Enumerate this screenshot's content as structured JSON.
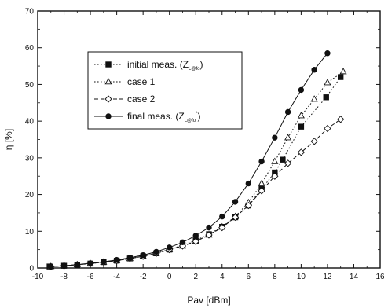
{
  "chart_data": {
    "type": "line",
    "xlabel": "Pav [dBm]",
    "ylabel": "η [%]",
    "xlim": [
      -10,
      16
    ],
    "ylim": [
      0,
      70
    ],
    "x_ticks": [
      "-10",
      "-8",
      "-6",
      "-4",
      "-2",
      "0",
      "2",
      "4",
      "6",
      "8",
      "10",
      "12",
      "14",
      "16"
    ],
    "y_ticks": [
      "0",
      "10",
      "20",
      "30",
      "40",
      "50",
      "60",
      "70"
    ],
    "legend_position": "upper-left",
    "grid": false,
    "series": [
      {
        "name": "initial meas. (Z",
        "subscript": "L@fo",
        "suffix": ")",
        "line": "dotted",
        "marker": "square-filled",
        "x": [
          -9.1,
          -8.0,
          -7.0,
          -6.0,
          -5.0,
          -4.0,
          -3.0,
          -2.0,
          -1.0,
          0.0,
          1.0,
          2.0,
          3.0,
          4.0,
          5.0,
          6.0,
          7.0,
          8.0,
          8.6,
          10.0,
          11.9,
          13.0
        ],
        "y": [
          0.4,
          0.6,
          0.9,
          1.2,
          1.6,
          2.0,
          2.6,
          3.2,
          4.0,
          5.0,
          6.2,
          7.5,
          9.2,
          11.2,
          13.8,
          17.0,
          21.5,
          26.0,
          29.5,
          38.5,
          46.5,
          52.0
        ]
      },
      {
        "name": "case 1",
        "line": "dotted",
        "marker": "triangle-open",
        "x": [
          -9.0,
          -8.0,
          -7.0,
          -6.0,
          -5.0,
          -4.0,
          -3.0,
          -2.0,
          -1.0,
          0.0,
          1.0,
          2.0,
          3.0,
          4.0,
          5.0,
          6.0,
          7.0,
          8.0,
          9.0,
          10.0,
          11.0,
          12.0,
          13.2
        ],
        "y": [
          0.4,
          0.6,
          0.9,
          1.2,
          1.6,
          2.0,
          2.6,
          3.2,
          4.0,
          5.0,
          6.0,
          7.3,
          9.0,
          11.2,
          14.0,
          17.8,
          23.0,
          29.0,
          35.5,
          41.5,
          46.0,
          50.5,
          53.5
        ]
      },
      {
        "name": "case 2",
        "line": "dashed",
        "marker": "diamond-open",
        "x": [
          -9.0,
          -8.0,
          -7.0,
          -6.0,
          -5.0,
          -4.0,
          -3.0,
          -2.0,
          -1.0,
          0.0,
          1.0,
          2.0,
          3.0,
          4.0,
          5.0,
          6.0,
          7.0,
          8.0,
          9.0,
          10.0,
          11.0,
          12.0,
          13.0
        ],
        "y": [
          0.4,
          0.6,
          0.9,
          1.2,
          1.6,
          2.0,
          2.6,
          3.2,
          4.0,
          5.0,
          6.0,
          7.2,
          9.0,
          11.0,
          13.8,
          17.0,
          21.0,
          25.0,
          28.5,
          31.5,
          34.5,
          38.0,
          40.5
        ]
      },
      {
        "name": "final meas. (Z",
        "subscript": "L@fo",
        "superscript": "*",
        "suffix": ")",
        "line": "solid",
        "marker": "circle-filled",
        "x": [
          -9.0,
          -8.0,
          -7.0,
          -6.0,
          -5.0,
          -4.0,
          -3.0,
          -2.0,
          -1.0,
          0.0,
          1.0,
          2.0,
          3.0,
          4.0,
          5.0,
          6.0,
          7.0,
          8.0,
          9.0,
          10.0,
          11.0,
          12.0
        ],
        "y": [
          0.4,
          0.6,
          0.9,
          1.3,
          1.7,
          2.2,
          2.8,
          3.5,
          4.4,
          5.6,
          7.0,
          8.8,
          11.0,
          14.0,
          18.0,
          23.0,
          29.0,
          35.5,
          42.5,
          48.5,
          54.0,
          58.5
        ]
      }
    ]
  }
}
